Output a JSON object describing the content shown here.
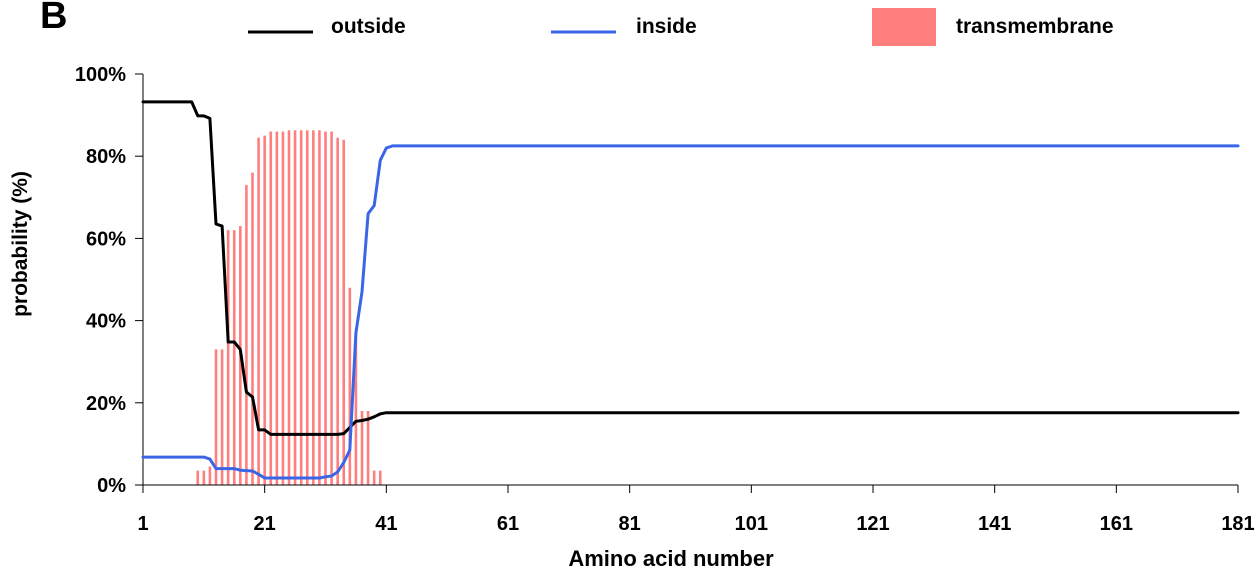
{
  "panel_letter": "B",
  "chart_data": {
    "type": "line",
    "xlabel": "Amino acid number",
    "ylabel": "probability (%)",
    "xlim": [
      1,
      181
    ],
    "ylim": [
      0,
      100
    ],
    "x_ticks": [
      1,
      21,
      41,
      61,
      81,
      101,
      121,
      141,
      161,
      181
    ],
    "y_ticks": [
      0,
      20,
      40,
      60,
      80,
      100
    ],
    "y_tick_labels": [
      "0%",
      "20%",
      "40%",
      "60%",
      "80%",
      "100%"
    ],
    "legend_position": "top",
    "legend": [
      {
        "key": "outside",
        "label": "outside",
        "color": "#000000",
        "kind": "line"
      },
      {
        "key": "inside",
        "label": "inside",
        "color": "#3a66e6",
        "kind": "line"
      },
      {
        "key": "transmembrane",
        "label": "transmembrane",
        "color": "#ff7f7f",
        "kind": "bar"
      }
    ],
    "series": [
      {
        "name": "outside",
        "color": "#000000",
        "points": [
          [
            1,
            93.2
          ],
          [
            9,
            93.2
          ],
          [
            10,
            89.8
          ],
          [
            11,
            89.8
          ],
          [
            12,
            89.2
          ],
          [
            13,
            63.5
          ],
          [
            14,
            63
          ],
          [
            15,
            34.8
          ],
          [
            16,
            34.8
          ],
          [
            17,
            33
          ],
          [
            18,
            22.6
          ],
          [
            19,
            21.4
          ],
          [
            20,
            13.4
          ],
          [
            21,
            13.4
          ],
          [
            22,
            12.3
          ],
          [
            33,
            12.3
          ],
          [
            34,
            12.5
          ],
          [
            35,
            14
          ],
          [
            36,
            15.5
          ],
          [
            37,
            15.7
          ],
          [
            38,
            16
          ],
          [
            39,
            16.6
          ],
          [
            40,
            17.3
          ],
          [
            41,
            17.6
          ],
          [
            181,
            17.6
          ]
        ]
      },
      {
        "name": "inside",
        "color": "#3a66e6",
        "points": [
          [
            1,
            6.8
          ],
          [
            11,
            6.8
          ],
          [
            12,
            6.3
          ],
          [
            13,
            4
          ],
          [
            16,
            4
          ],
          [
            17,
            3.6
          ],
          [
            19,
            3.4
          ],
          [
            20,
            2.6
          ],
          [
            21,
            1.7
          ],
          [
            30,
            1.7
          ],
          [
            31,
            2
          ],
          [
            32,
            2.2
          ],
          [
            33,
            3.2
          ],
          [
            34,
            5.5
          ],
          [
            35,
            8.5
          ],
          [
            36,
            37
          ],
          [
            37,
            47
          ],
          [
            38,
            66
          ],
          [
            39,
            68
          ],
          [
            40,
            79
          ],
          [
            41,
            82
          ],
          [
            42,
            82.5
          ],
          [
            181,
            82.5
          ]
        ]
      },
      {
        "name": "transmembrane",
        "type": "bar",
        "color": "#ff7f7f",
        "x": [
          10,
          11,
          12,
          13,
          14,
          15,
          16,
          17,
          18,
          19,
          20,
          21,
          22,
          23,
          24,
          25,
          26,
          27,
          28,
          29,
          30,
          31,
          32,
          33,
          34,
          35,
          36,
          37,
          38,
          39,
          40
        ],
        "values": [
          3.5,
          3.5,
          4.5,
          33,
          33,
          62,
          62,
          63,
          73,
          76,
          84.5,
          85,
          86,
          86,
          86,
          86.3,
          86.3,
          86.3,
          86.3,
          86.3,
          86.3,
          86,
          86,
          84.5,
          84,
          48,
          37,
          18,
          18,
          3.5,
          3.5
        ]
      }
    ]
  }
}
